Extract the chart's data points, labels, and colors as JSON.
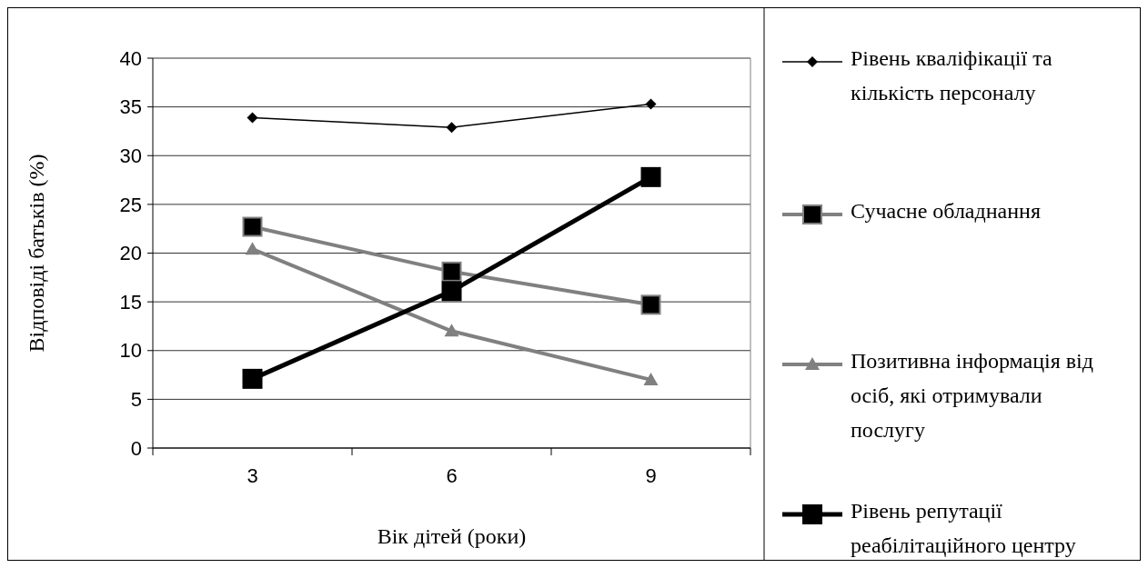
{
  "chart_data": {
    "type": "line",
    "xlabel": "Вік дітей (роки)",
    "ylabel": "Відповіді батьків (%)",
    "categories": [
      "3",
      "6",
      "9"
    ],
    "ylim": [
      0,
      40
    ],
    "yticks": [
      0,
      5,
      10,
      15,
      20,
      25,
      30,
      35,
      40
    ],
    "grid": "y",
    "legend": "right",
    "series": [
      {
        "name": "Рівень кваліфікації та кількість персоналу",
        "color": "#000000",
        "marker": "diamond",
        "values": [
          33.9,
          32.9,
          35.3
        ]
      },
      {
        "name": "Сучасне обладнання",
        "color": "#808080",
        "marker": "square",
        "values": [
          22.7,
          18.1,
          14.7
        ]
      },
      {
        "name": "Позитивна інформація від осіб, які отримували послугу",
        "color": "#808080",
        "marker": "triangle",
        "values": [
          20.4,
          12.0,
          7.0
        ]
      },
      {
        "name": "Рівень репутації реабілітаційного центру",
        "color": "#000000",
        "marker": "square",
        "values": [
          7.1,
          16.1,
          27.8
        ]
      }
    ]
  }
}
